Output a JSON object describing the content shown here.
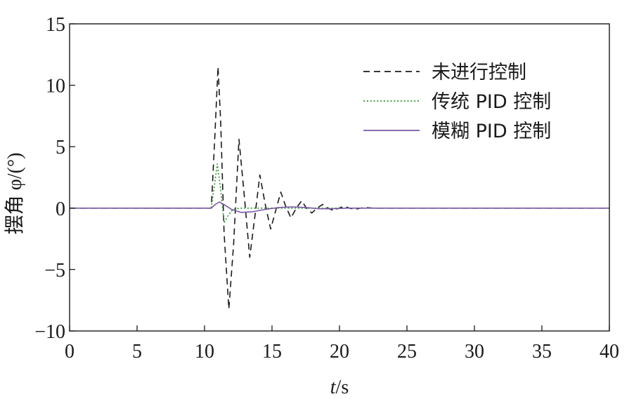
{
  "chart_data": {
    "type": "line",
    "xlabel": "t/s",
    "xlabel_var": "t",
    "xlabel_unit": "/s",
    "ylabel": "摆角 φ/(°)",
    "xlim": [
      0,
      40
    ],
    "ylim": [
      -10,
      15
    ],
    "x_ticks": [
      0,
      5,
      10,
      15,
      20,
      25,
      30,
      35,
      40
    ],
    "y_ticks": [
      -10,
      -5,
      0,
      5,
      10,
      15
    ],
    "x_tick_labels": [
      "0",
      "5",
      "10",
      "15",
      "20",
      "25",
      "30",
      "35",
      "40"
    ],
    "y_tick_labels": [
      "−10",
      "−5",
      "0",
      "5",
      "10",
      "15"
    ],
    "grid": false,
    "legend_position": "top-right",
    "series": [
      {
        "name": "未进行控制",
        "color": "#1a1a1a",
        "style": "dashed",
        "points": [
          [
            0,
            0
          ],
          [
            10.5,
            0
          ],
          [
            10.75,
            5.5
          ],
          [
            11.0,
            11.5
          ],
          [
            11.2,
            7.0
          ],
          [
            11.45,
            -2.0
          ],
          [
            11.8,
            -8.2
          ],
          [
            12.15,
            -3.0
          ],
          [
            12.55,
            5.6
          ],
          [
            12.95,
            1.0
          ],
          [
            13.35,
            -4.0
          ],
          [
            13.75,
            -0.5
          ],
          [
            14.1,
            2.7
          ],
          [
            14.5,
            0.3
          ],
          [
            14.9,
            -1.7
          ],
          [
            15.25,
            -0.3
          ],
          [
            15.65,
            1.3
          ],
          [
            16.0,
            0.2
          ],
          [
            16.4,
            -0.8
          ],
          [
            16.8,
            0.0
          ],
          [
            17.2,
            0.6
          ],
          [
            17.55,
            0.0
          ],
          [
            17.95,
            -0.4
          ],
          [
            18.35,
            0.0
          ],
          [
            18.75,
            0.3
          ],
          [
            19.15,
            0.0
          ],
          [
            19.55,
            -0.2
          ],
          [
            19.95,
            0.0
          ],
          [
            20.35,
            0.15
          ],
          [
            20.75,
            0.0
          ],
          [
            21.15,
            -0.1
          ],
          [
            21.55,
            0.0
          ],
          [
            21.95,
            0.05
          ],
          [
            22.5,
            0.0
          ],
          [
            40,
            0
          ]
        ]
      },
      {
        "name": "传统 PID 控制",
        "color": "#3a9a3a",
        "style": "dotted",
        "points": [
          [
            0,
            0
          ],
          [
            10.5,
            0
          ],
          [
            10.75,
            2.0
          ],
          [
            10.95,
            3.6
          ],
          [
            11.2,
            1.5
          ],
          [
            11.45,
            -1.2
          ],
          [
            11.75,
            -0.6
          ],
          [
            12.1,
            -0.1
          ],
          [
            12.6,
            0.0
          ],
          [
            40,
            0
          ]
        ]
      },
      {
        "name": "模糊 PID 控制",
        "color": "#7a5aa8",
        "style": "solid",
        "points": [
          [
            0,
            0
          ],
          [
            10.5,
            0
          ],
          [
            10.8,
            0.3
          ],
          [
            11.1,
            0.5
          ],
          [
            11.5,
            0.25
          ],
          [
            12.0,
            -0.1
          ],
          [
            12.7,
            -0.35
          ],
          [
            13.5,
            -0.3
          ],
          [
            14.5,
            -0.1
          ],
          [
            15.5,
            0.05
          ],
          [
            16.5,
            0.1
          ],
          [
            17.5,
            0.05
          ],
          [
            18.5,
            -0.05
          ],
          [
            19.5,
            -0.05
          ],
          [
            20.5,
            0.0
          ],
          [
            40,
            0
          ]
        ]
      }
    ]
  }
}
